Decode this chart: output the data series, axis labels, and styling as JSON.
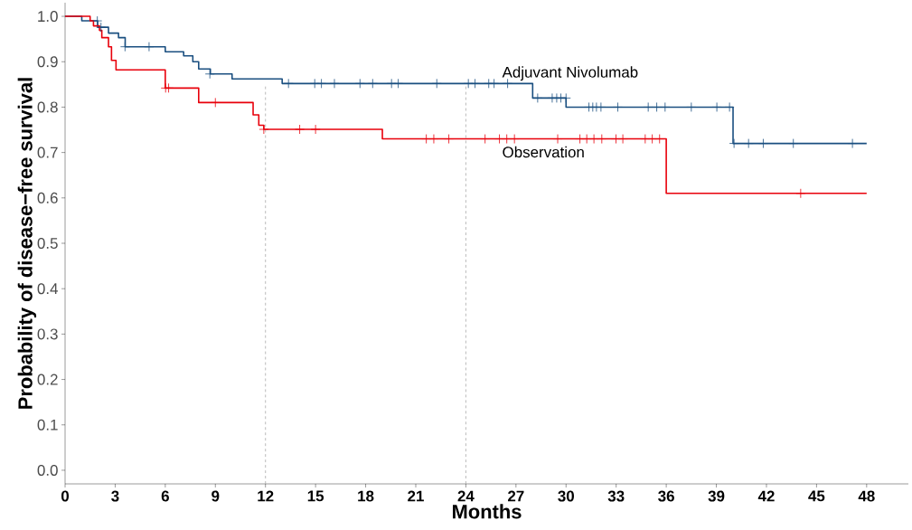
{
  "chart_data": {
    "type": "step",
    "xlabel": "Months",
    "ylabel": "Probability of disease−free survival",
    "xlim": [
      0,
      50.5
    ],
    "ylim": [
      -0.03,
      1.03
    ],
    "xticks": [
      0,
      3,
      6,
      9,
      12,
      15,
      18,
      21,
      24,
      27,
      30,
      33,
      36,
      39,
      42,
      45,
      48
    ],
    "yticks": [
      {
        "value": 0,
        "label": "0.0"
      },
      {
        "value": 0.1,
        "label": "0.1"
      },
      {
        "value": 0.2,
        "label": "0.2"
      },
      {
        "value": 0.3,
        "label": "0.3"
      },
      {
        "value": 0.4,
        "label": "0.4"
      },
      {
        "value": 0.5,
        "label": "0.5"
      },
      {
        "value": 0.6,
        "label": "0.6"
      },
      {
        "value": 0.7,
        "label": "0.7"
      },
      {
        "value": 0.8,
        "label": "0.8"
      },
      {
        "value": 0.9,
        "label": "0.9"
      },
      {
        "value": 1.0,
        "label": "1.0"
      }
    ],
    "grid": false,
    "ref_lines": [
      {
        "axis": "x",
        "value": 12,
        "color": "#aaaaaa",
        "line_style": "dashed"
      },
      {
        "axis": "x",
        "value": 24,
        "color": "#aaaaaa",
        "line_style": "dashed"
      }
    ],
    "series": [
      {
        "name": "Adjuvant Nivolumab",
        "type": "step",
        "color": "#1a4f80",
        "x": [
          0,
          1.0,
          1.95,
          2.6,
          3.2,
          3.6,
          6.0,
          7.1,
          7.65,
          8.0,
          8.7,
          10.0,
          13.0,
          28.0,
          30.0,
          40.0,
          48.0
        ],
        "values": [
          1.0,
          0.99,
          0.976,
          0.963,
          0.953,
          0.933,
          0.922,
          0.913,
          0.9,
          0.884,
          0.873,
          0.862,
          0.852,
          0.82,
          0.8,
          0.72,
          0.72
        ]
      },
      {
        "name": "Observation",
        "type": "step",
        "color": "#e8000b",
        "x": [
          0,
          1.5,
          1.7,
          2.06,
          2.2,
          2.6,
          2.78,
          3.05,
          6.0,
          8.0,
          11.0,
          11.26,
          11.6,
          11.9,
          19.0,
          36.0,
          48.0
        ],
        "values": [
          1.0,
          0.99,
          0.979,
          0.969,
          0.953,
          0.933,
          0.903,
          0.882,
          0.842,
          0.81,
          0.81,
          0.783,
          0.76,
          0.751,
          0.73,
          0.61,
          0.61
        ]
      },
      {
        "type": "scatter",
        "marker": "cross",
        "color": "#1a4f80",
        "x": [
          1.93,
          2.15,
          3.59,
          5.03,
          8.67,
          13.38,
          14.95,
          15.35,
          16.13,
          17.66,
          18.42,
          19.55,
          19.95,
          22.26,
          24.15,
          24.55,
          25.37,
          25.69,
          26.5,
          28.3,
          29.17,
          29.44,
          29.69,
          30.0,
          31.37,
          31.6,
          31.82,
          32.09,
          33.1,
          34.92,
          35.43,
          35.93,
          37.5,
          39.03,
          39.79,
          40.06,
          40.93,
          41.81,
          43.61,
          47.15
        ],
        "values": [
          0.99,
          0.976,
          0.933,
          0.933,
          0.873,
          0.852,
          0.852,
          0.852,
          0.852,
          0.852,
          0.852,
          0.852,
          0.852,
          0.852,
          0.852,
          0.852,
          0.852,
          0.852,
          0.852,
          0.82,
          0.82,
          0.82,
          0.82,
          0.82,
          0.8,
          0.8,
          0.8,
          0.8,
          0.8,
          0.8,
          0.8,
          0.8,
          0.8,
          0.8,
          0.8,
          0.72,
          0.72,
          0.72,
          0.72,
          0.72
        ]
      },
      {
        "type": "scatter",
        "marker": "cross",
        "color": "#e8000b",
        "x": [
          6.02,
          6.2,
          9.0,
          11.9,
          14.05,
          15.0,
          21.63,
          22.08,
          22.98,
          25.15,
          26.01,
          26.45,
          26.91,
          29.5,
          30.83,
          31.24,
          31.67,
          32.14,
          32.99,
          33.4,
          34.74,
          35.16,
          35.6,
          44.05
        ],
        "values": [
          0.842,
          0.842,
          0.81,
          0.751,
          0.751,
          0.751,
          0.73,
          0.73,
          0.73,
          0.73,
          0.73,
          0.73,
          0.73,
          0.73,
          0.73,
          0.73,
          0.73,
          0.73,
          0.73,
          0.73,
          0.73,
          0.73,
          0.73,
          0.61
        ]
      }
    ]
  }
}
